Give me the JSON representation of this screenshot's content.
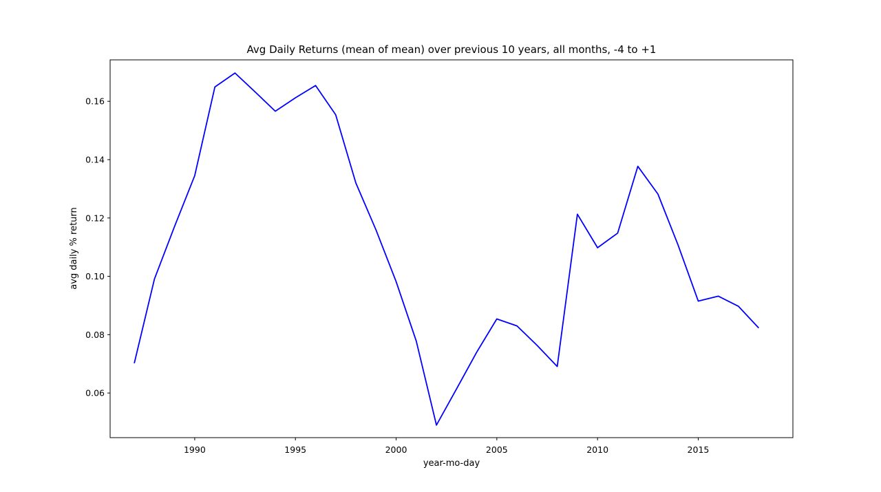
{
  "chart_data": {
    "type": "line",
    "title": "Avg Daily Returns (mean of mean) over previous 10 years, all months, -4 to +1",
    "xlabel": "year-mo-day",
    "ylabel": "avg daily % return",
    "xlim": [
      1985.8,
      2019.7
    ],
    "ylim": [
      0.0447,
      0.1742
    ],
    "x_ticks": [
      1990,
      1995,
      2000,
      2005,
      2010,
      2015
    ],
    "y_ticks": [
      0.06,
      0.08,
      0.1,
      0.12,
      0.14,
      0.16
    ],
    "y_tick_labels": [
      "0.06",
      "0.08",
      "0.10",
      "0.12",
      "0.14",
      "0.16"
    ],
    "grid": false,
    "line_color": "#0000ff",
    "series": [
      {
        "x": [
          1987,
          1988,
          1989,
          1990,
          1991,
          1992,
          1993,
          1994,
          1995,
          1996,
          1997,
          1998,
          1999,
          2000,
          2001,
          2002,
          2003,
          2004,
          2005,
          2006,
          2007,
          2008,
          2009,
          2010,
          2011,
          2012,
          2013,
          2014,
          2015,
          2016,
          2017,
          2018
        ],
        "values": [
          0.0702,
          0.0991,
          0.1171,
          0.1345,
          0.1649,
          0.1697,
          0.1632,
          0.1566,
          0.1612,
          0.1654,
          0.1554,
          0.132,
          0.1159,
          0.0982,
          0.0778,
          0.049,
          0.0614,
          0.074,
          0.0854,
          0.083,
          0.0763,
          0.0691,
          0.1213,
          0.1098,
          0.1148,
          0.1377,
          0.1282,
          0.1107,
          0.0915,
          0.0932,
          0.0897,
          0.0823
        ]
      }
    ]
  }
}
